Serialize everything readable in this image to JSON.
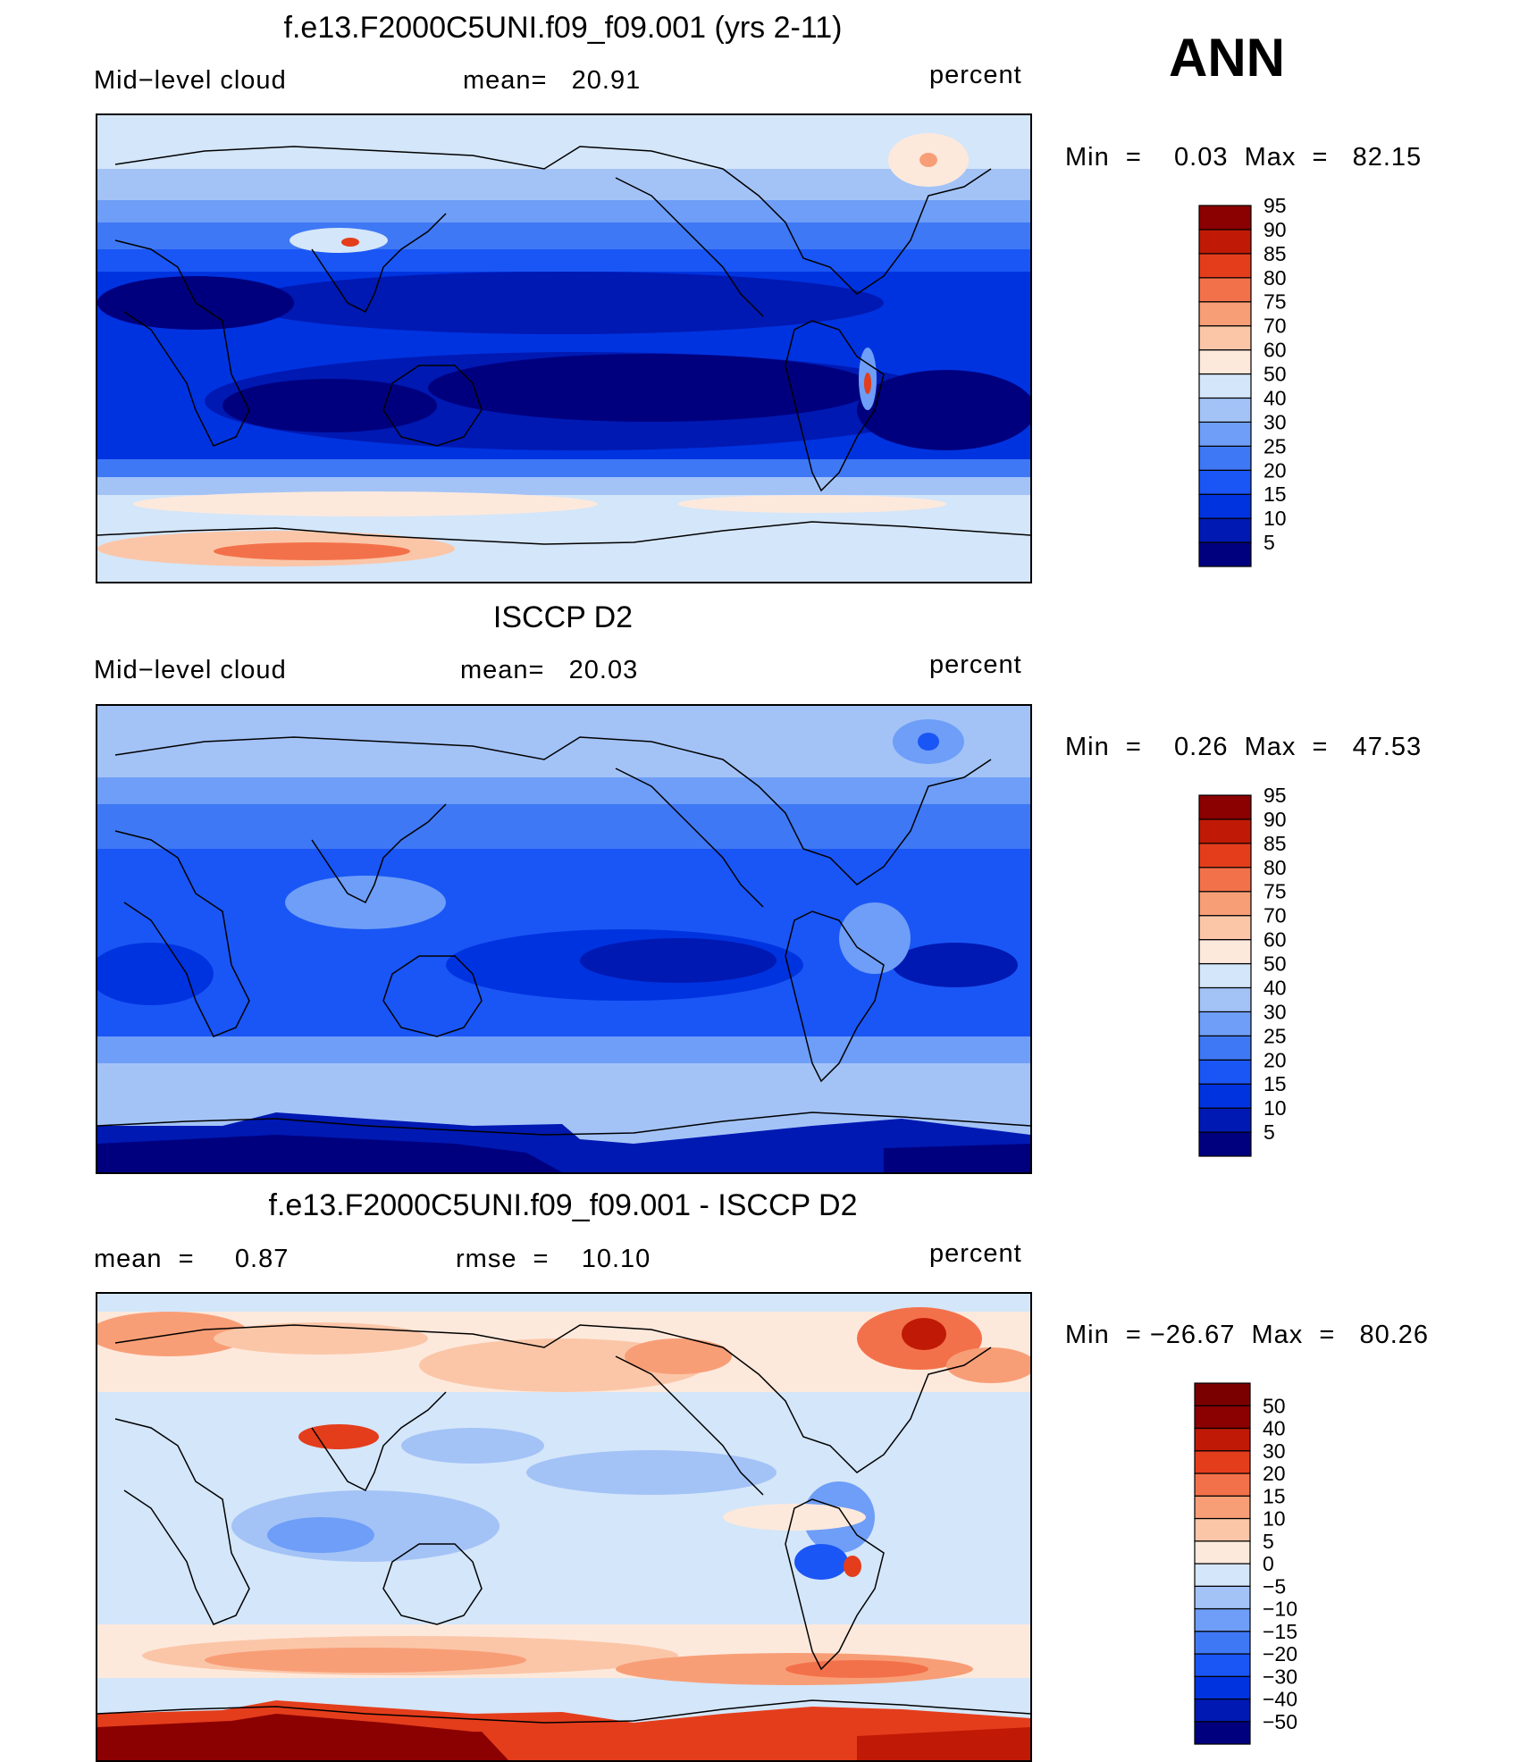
{
  "season": "ANN",
  "panels": [
    {
      "title": "f.e13.F2000C5UNI.f09_f09.001 (yrs 2-11)",
      "left_label": "Mid−level cloud",
      "center_label": "mean=   20.91",
      "right_label": "percent",
      "minmax": "Min  =    0.03  Max  =   82.15"
    },
    {
      "title": "ISCCP D2",
      "left_label": "Mid−level cloud",
      "center_label": "mean=   20.03",
      "right_label": "percent",
      "minmax": "Min  =    0.26  Max  =   47.53"
    },
    {
      "title": "f.e13.F2000C5UNI.f09_f09.001 - ISCCP D2",
      "left_label": "mean  =     0.87",
      "center_label": "rmse  =    10.10",
      "right_label": "percent",
      "minmax": "Min  = −26.67  Max  =   80.26"
    }
  ],
  "chart_data": [
    {
      "type": "heatmap",
      "title": "f.e13.F2000C5UNI.f09_f09.001 (yrs 2-11)",
      "variable": "Mid-level cloud",
      "units": "percent",
      "mean": 20.91,
      "min": 0.03,
      "max": 82.15,
      "colorbar_levels": [
        5,
        10,
        15,
        20,
        25,
        30,
        40,
        50,
        60,
        70,
        75,
        80,
        85,
        90,
        95
      ],
      "colorbar_colors": [
        "#00007f",
        "#0019b3",
        "#0033e0",
        "#1a56f5",
        "#3f78f5",
        "#6e9ef7",
        "#a3c3f7",
        "#d4e6f9",
        "#fde9dc",
        "#fbc6a8",
        "#f89e77",
        "#f3714a",
        "#e43d1c",
        "#c01a06",
        "#8b0000"
      ]
    },
    {
      "type": "heatmap",
      "title": "ISCCP D2",
      "variable": "Mid-level cloud",
      "units": "percent",
      "mean": 20.03,
      "min": 0.26,
      "max": 47.53,
      "colorbar_levels": [
        5,
        10,
        15,
        20,
        25,
        30,
        40,
        50,
        60,
        70,
        75,
        80,
        85,
        90,
        95
      ],
      "colorbar_colors": [
        "#00007f",
        "#0019b3",
        "#0033e0",
        "#1a56f5",
        "#3f78f5",
        "#6e9ef7",
        "#a3c3f7",
        "#d4e6f9",
        "#fde9dc",
        "#fbc6a8",
        "#f89e77",
        "#f3714a",
        "#e43d1c",
        "#c01a06",
        "#8b0000"
      ]
    },
    {
      "type": "heatmap",
      "title": "f.e13.F2000C5UNI.f09_f09.001 - ISCCP D2",
      "units": "percent",
      "mean": 0.87,
      "rmse": 10.1,
      "min": -26.67,
      "max": 80.26,
      "colorbar_levels": [
        -50,
        -40,
        -30,
        -20,
        -15,
        -10,
        -5,
        0,
        5,
        10,
        15,
        20,
        30,
        40,
        50
      ],
      "colorbar_colors": [
        "#00007f",
        "#0019b3",
        "#0033e0",
        "#1a56f5",
        "#3f78f5",
        "#6e9ef7",
        "#a3c3f7",
        "#d4e6f9",
        "#fde9dc",
        "#fbc6a8",
        "#f89e77",
        "#f3714a",
        "#e43d1c",
        "#c01a06",
        "#8b0000",
        "#7a0000"
      ]
    }
  ]
}
